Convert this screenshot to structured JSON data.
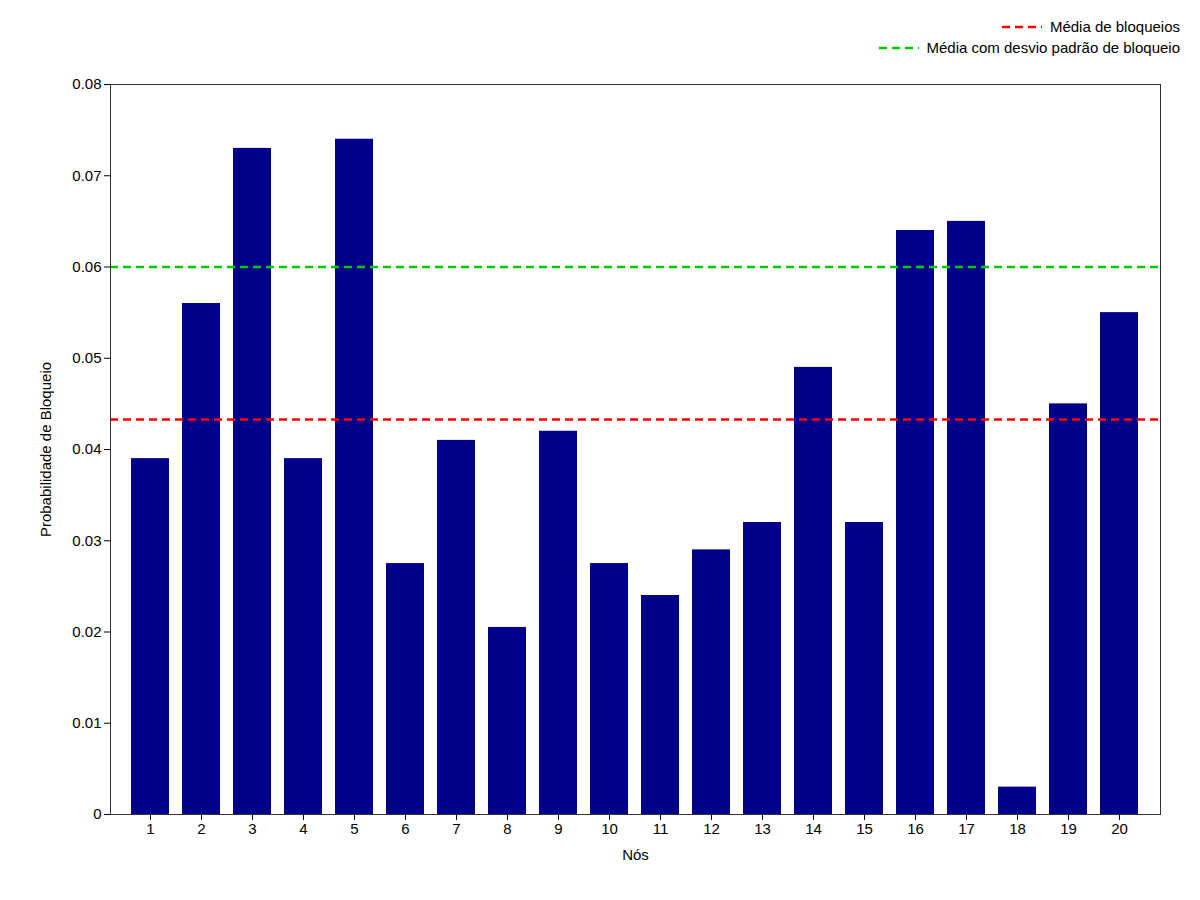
{
  "chart_data": {
    "type": "bar",
    "categories": [
      1,
      2,
      3,
      4,
      5,
      6,
      7,
      8,
      9,
      10,
      11,
      12,
      13,
      14,
      15,
      16,
      17,
      18,
      19,
      20
    ],
    "values": [
      0.039,
      0.056,
      0.073,
      0.039,
      0.074,
      0.0275,
      0.041,
      0.0205,
      0.042,
      0.0275,
      0.024,
      0.029,
      0.032,
      0.049,
      0.032,
      0.064,
      0.065,
      0.003,
      0.045,
      0.055
    ],
    "color": "#00008B",
    "reference_lines": [
      {
        "name": "Média de bloqueios",
        "value": 0.0433,
        "color": "#FF0000",
        "line_style": "dashed"
      },
      {
        "name": "Média com desvio padrão de bloqueio",
        "value": 0.06,
        "color": "#00CC00",
        "line_style": "dashed"
      }
    ],
    "xlabel": "Nós",
    "ylabel": "Probabilidade de Bloqueio",
    "ylim": [
      0,
      0.08
    ],
    "yticks": [
      0,
      0.01,
      0.02,
      0.03,
      0.04,
      0.05,
      0.06,
      0.07,
      0.08
    ],
    "legend": "upper right",
    "grid": false
  }
}
